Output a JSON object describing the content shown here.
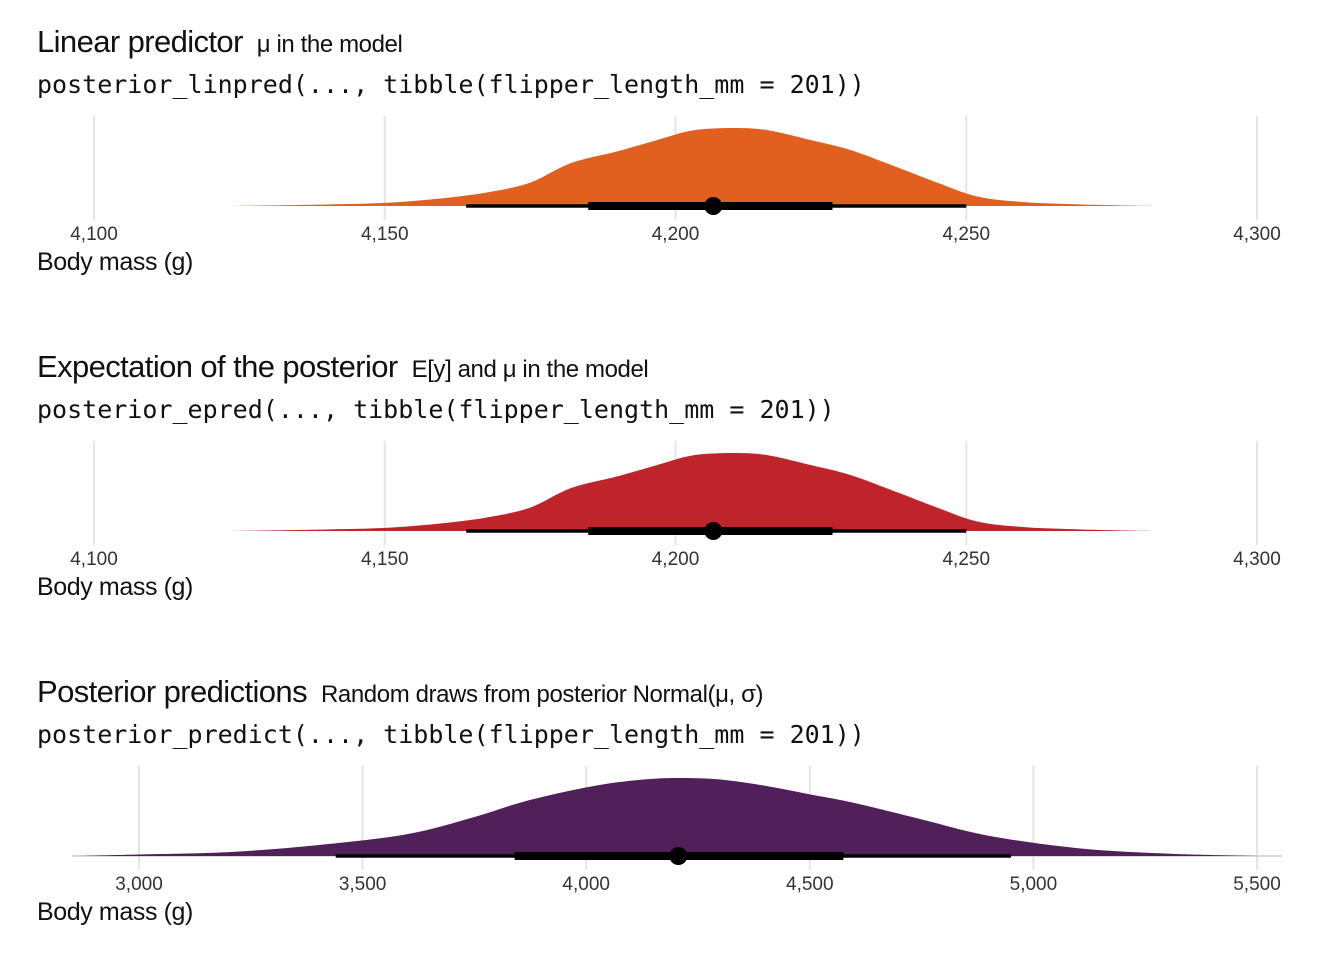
{
  "chart_data": [
    {
      "type": "halfeye",
      "title": "Linear predictor",
      "subtitle": "μ in the model",
      "code": "posterior_linpred(..., tibble(flipper_length_mm = 201))",
      "xlabel": "Body mass (g)",
      "xlim": [
        4100,
        4300
      ],
      "ticks": [
        4100,
        4150,
        4200,
        4250,
        4300
      ],
      "tick_labels": [
        "4,100",
        "4,150",
        "4,200",
        "4,250",
        "4,300"
      ],
      "fill_color": "#E1601F",
      "density": {
        "x": [
          4123,
          4140,
          4150,
          4160,
          4168,
          4175,
          4182,
          4190,
          4197,
          4203,
          4210,
          4216,
          4223,
          4230,
          4238,
          4245,
          4252,
          4260,
          4270,
          4282
        ],
        "y": [
          0.0,
          0.02,
          0.04,
          0.1,
          0.18,
          0.3,
          0.55,
          0.7,
          0.85,
          0.97,
          1.0,
          0.97,
          0.85,
          0.72,
          0.5,
          0.3,
          0.12,
          0.05,
          0.02,
          0.0
        ]
      },
      "point": 4206.5,
      "interval_66": [
        4185,
        4227
      ],
      "interval_95": [
        4164,
        4250
      ]
    },
    {
      "type": "halfeye",
      "title": "Expectation of the posterior",
      "subtitle": "E[y] and μ in the model",
      "code": "posterior_epred(..., tibble(flipper_length_mm = 201))",
      "xlabel": "Body mass (g)",
      "xlim": [
        4100,
        4300
      ],
      "ticks": [
        4100,
        4150,
        4200,
        4250,
        4300
      ],
      "tick_labels": [
        "4,100",
        "4,150",
        "4,200",
        "4,250",
        "4,300"
      ],
      "fill_color": "#BE2429",
      "density": {
        "x": [
          4123,
          4140,
          4150,
          4160,
          4168,
          4175,
          4182,
          4190,
          4197,
          4203,
          4210,
          4216,
          4223,
          4230,
          4238,
          4245,
          4252,
          4260,
          4270,
          4282
        ],
        "y": [
          0.0,
          0.02,
          0.04,
          0.1,
          0.18,
          0.3,
          0.55,
          0.7,
          0.85,
          0.97,
          1.0,
          0.97,
          0.85,
          0.72,
          0.5,
          0.3,
          0.12,
          0.05,
          0.02,
          0.0
        ]
      },
      "point": 4206.5,
      "interval_66": [
        4185,
        4227
      ],
      "interval_95": [
        4164,
        4250
      ]
    },
    {
      "type": "halfeye",
      "title": "Posterior predictions",
      "subtitle": "Random draws from posterior Normal(μ, σ)",
      "code": "posterior_predict(..., tibble(flipper_length_mm = 201))",
      "xlabel": "Body mass (g)",
      "xlim": [
        2850,
        5500
      ],
      "ticks": [
        3000,
        3500,
        4000,
        4500,
        5000,
        5500
      ],
      "tick_labels": [
        "3,000",
        "3,500",
        "4,000",
        "4,500",
        "5,000",
        "5,500"
      ],
      "fill_color": "#51205A",
      "density": {
        "x": [
          2860,
          3000,
          3200,
          3400,
          3600,
          3750,
          3850,
          3950,
          4050,
          4150,
          4220,
          4300,
          4400,
          4500,
          4600,
          4750,
          4900,
          5100,
          5300,
          5500
        ],
        "y": [
          0.0,
          0.02,
          0.05,
          0.14,
          0.28,
          0.5,
          0.68,
          0.82,
          0.93,
          0.99,
          1.0,
          0.98,
          0.9,
          0.79,
          0.68,
          0.47,
          0.26,
          0.1,
          0.03,
          0.0
        ]
      },
      "point": 4206,
      "interval_66": [
        3840,
        4575
      ],
      "interval_95": [
        3440,
        4950
      ]
    }
  ]
}
